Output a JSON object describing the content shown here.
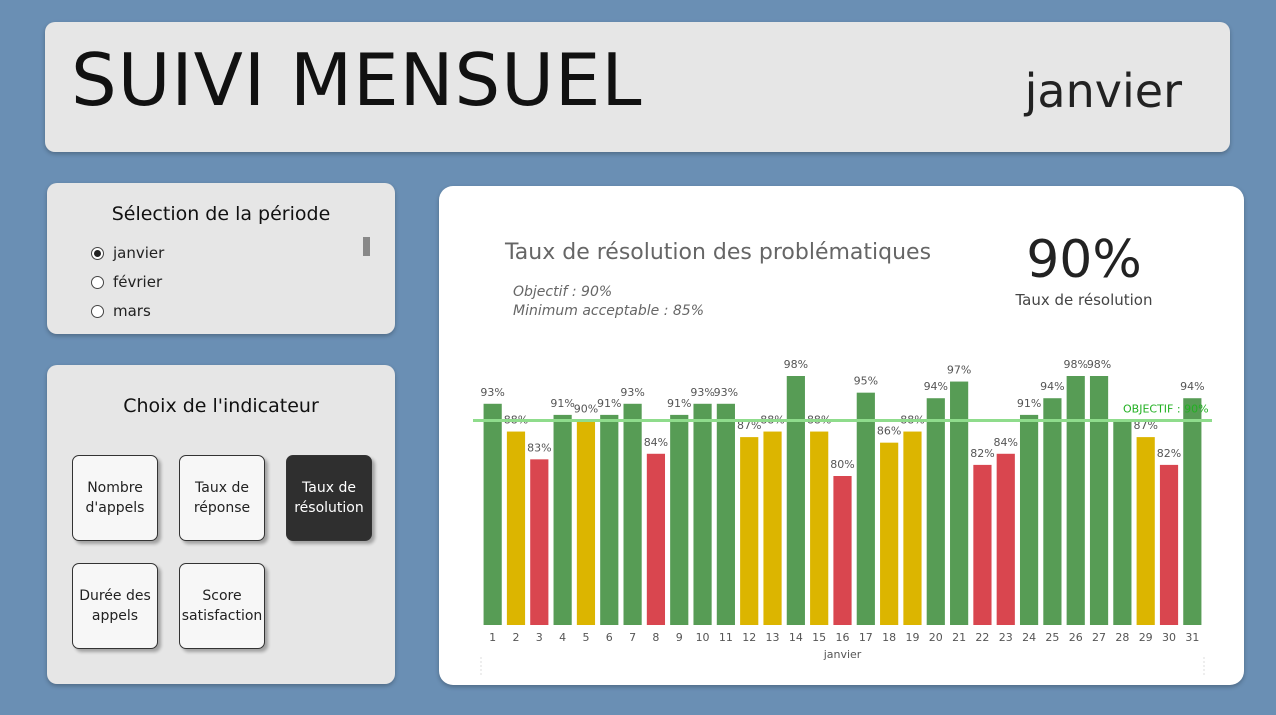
{
  "header": {
    "title": "SUIVI MENSUEL",
    "month": "janvier"
  },
  "period": {
    "title": "Sélection de la période",
    "options": [
      {
        "label": "janvier",
        "selected": true
      },
      {
        "label": "février",
        "selected": false
      },
      {
        "label": "mars",
        "selected": false
      }
    ]
  },
  "indicator": {
    "title": "Choix de l'indicateur",
    "buttons": [
      {
        "label": "Nombre d'appels",
        "active": false
      },
      {
        "label": "Taux de réponse",
        "active": false
      },
      {
        "label": "Taux de résolution",
        "active": true
      },
      {
        "label": "Durée des appels",
        "active": false
      },
      {
        "label": "Score satisfaction",
        "active": false
      }
    ]
  },
  "card": {
    "title": "Taux de résolution des problématiques",
    "objective_note": "Objectif : 90%",
    "minimum_note": "Minimum acceptable : 85%",
    "kpi_value": "90%",
    "kpi_label": "Taux de résolution"
  },
  "colors": {
    "green": "#579c55",
    "yellow": "#dcb500",
    "red": "#d9464f",
    "objective_line": "#8fdc8c",
    "objective_text": "#22b022"
  },
  "chart_data": {
    "type": "bar",
    "categories": [
      "1",
      "2",
      "3",
      "4",
      "5",
      "6",
      "7",
      "8",
      "9",
      "10",
      "11",
      "12",
      "13",
      "14",
      "15",
      "16",
      "17",
      "18",
      "19",
      "20",
      "21",
      "22",
      "23",
      "24",
      "25",
      "26",
      "27",
      "28",
      "29",
      "30",
      "31"
    ],
    "values": [
      93,
      88,
      83,
      91,
      90,
      91,
      93,
      84,
      91,
      93,
      93,
      87,
      88,
      98,
      88,
      80,
      95,
      86,
      88,
      94,
      97,
      82,
      84,
      91,
      94,
      98,
      98,
      90,
      87,
      82,
      94
    ],
    "data_labels": [
      "93%",
      "88%",
      "83%",
      "91%",
      "90%",
      "91%",
      "93%",
      "84%",
      "91%",
      "93%",
      "93%",
      "87%",
      "88%",
      "98%",
      "88%",
      "80%",
      "95%",
      "86%",
      "88%",
      "94%",
      "97%",
      "82%",
      "84%",
      "91%",
      "94%",
      "98%",
      "98%",
      "",
      "87%",
      "82%",
      "94%"
    ],
    "colors": [
      "green",
      "yellow",
      "red",
      "green",
      "yellow",
      "green",
      "green",
      "red",
      "green",
      "green",
      "green",
      "yellow",
      "yellow",
      "green",
      "yellow",
      "red",
      "green",
      "yellow",
      "yellow",
      "green",
      "green",
      "red",
      "red",
      "green",
      "green",
      "green",
      "green",
      "green",
      "yellow",
      "red",
      "green"
    ],
    "xlabel": "janvier",
    "ylabel": "",
    "ylim": [
      0,
      100
    ],
    "reference_line": {
      "value": 90,
      "label": "OBJECTIF : 90%"
    },
    "grid": false
  }
}
